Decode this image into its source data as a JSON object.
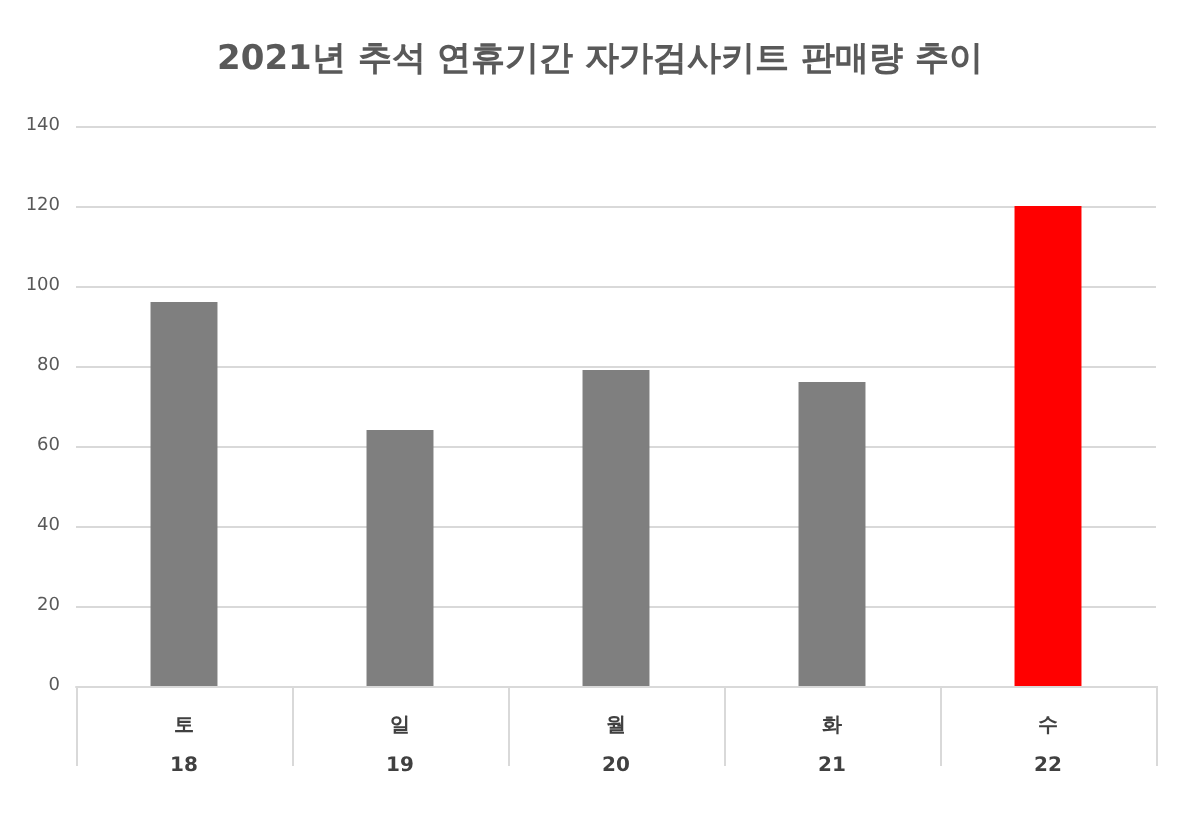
{
  "chart_data": {
    "type": "bar",
    "title": "2021년 추석 연휴기간 자가검사키트 판매량 추이",
    "categories": [
      "토\n18",
      "일\n19",
      "월\n20",
      "화\n21",
      "수\n22"
    ],
    "values": [
      96,
      64,
      79,
      76,
      120
    ],
    "colors": [
      "#7f7f7f",
      "#7f7f7f",
      "#7f7f7f",
      "#7f7f7f",
      "#ff0000"
    ],
    "ylim": [
      0,
      140
    ],
    "yticks": [
      0,
      20,
      40,
      60,
      80,
      100,
      120,
      140
    ],
    "grid": "y"
  }
}
